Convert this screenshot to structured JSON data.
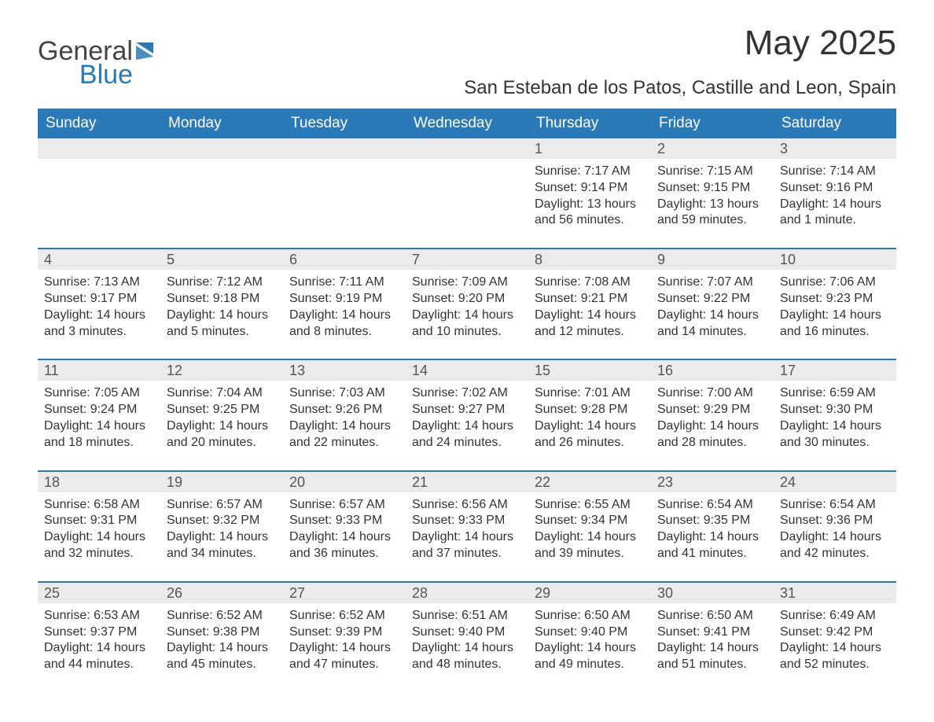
{
  "brand": {
    "word1": "General",
    "word2": "Blue"
  },
  "title": "May 2025",
  "location": "San Esteban de los Patos, Castille and Leon, Spain",
  "colors": {
    "header_bg": "#2a7ab9",
    "row_separator": "#2a7ab9",
    "daynum_bg": "#ebebeb",
    "text": "#333333",
    "logo_gray": "#444444",
    "logo_blue": "#2a7ab9",
    "background": "#ffffff"
  },
  "dow": [
    "Sunday",
    "Monday",
    "Tuesday",
    "Wednesday",
    "Thursday",
    "Friday",
    "Saturday"
  ],
  "weeks": [
    [
      {
        "day": "",
        "sunrise": "",
        "sunset": "",
        "daylight": ""
      },
      {
        "day": "",
        "sunrise": "",
        "sunset": "",
        "daylight": ""
      },
      {
        "day": "",
        "sunrise": "",
        "sunset": "",
        "daylight": ""
      },
      {
        "day": "",
        "sunrise": "",
        "sunset": "",
        "daylight": ""
      },
      {
        "day": "1",
        "sunrise": "Sunrise: 7:17 AM",
        "sunset": "Sunset: 9:14 PM",
        "daylight": "Daylight: 13 hours and 56 minutes."
      },
      {
        "day": "2",
        "sunrise": "Sunrise: 7:15 AM",
        "sunset": "Sunset: 9:15 PM",
        "daylight": "Daylight: 13 hours and 59 minutes."
      },
      {
        "day": "3",
        "sunrise": "Sunrise: 7:14 AM",
        "sunset": "Sunset: 9:16 PM",
        "daylight": "Daylight: 14 hours and 1 minute."
      }
    ],
    [
      {
        "day": "4",
        "sunrise": "Sunrise: 7:13 AM",
        "sunset": "Sunset: 9:17 PM",
        "daylight": "Daylight: 14 hours and 3 minutes."
      },
      {
        "day": "5",
        "sunrise": "Sunrise: 7:12 AM",
        "sunset": "Sunset: 9:18 PM",
        "daylight": "Daylight: 14 hours and 5 minutes."
      },
      {
        "day": "6",
        "sunrise": "Sunrise: 7:11 AM",
        "sunset": "Sunset: 9:19 PM",
        "daylight": "Daylight: 14 hours and 8 minutes."
      },
      {
        "day": "7",
        "sunrise": "Sunrise: 7:09 AM",
        "sunset": "Sunset: 9:20 PM",
        "daylight": "Daylight: 14 hours and 10 minutes."
      },
      {
        "day": "8",
        "sunrise": "Sunrise: 7:08 AM",
        "sunset": "Sunset: 9:21 PM",
        "daylight": "Daylight: 14 hours and 12 minutes."
      },
      {
        "day": "9",
        "sunrise": "Sunrise: 7:07 AM",
        "sunset": "Sunset: 9:22 PM",
        "daylight": "Daylight: 14 hours and 14 minutes."
      },
      {
        "day": "10",
        "sunrise": "Sunrise: 7:06 AM",
        "sunset": "Sunset: 9:23 PM",
        "daylight": "Daylight: 14 hours and 16 minutes."
      }
    ],
    [
      {
        "day": "11",
        "sunrise": "Sunrise: 7:05 AM",
        "sunset": "Sunset: 9:24 PM",
        "daylight": "Daylight: 14 hours and 18 minutes."
      },
      {
        "day": "12",
        "sunrise": "Sunrise: 7:04 AM",
        "sunset": "Sunset: 9:25 PM",
        "daylight": "Daylight: 14 hours and 20 minutes."
      },
      {
        "day": "13",
        "sunrise": "Sunrise: 7:03 AM",
        "sunset": "Sunset: 9:26 PM",
        "daylight": "Daylight: 14 hours and 22 minutes."
      },
      {
        "day": "14",
        "sunrise": "Sunrise: 7:02 AM",
        "sunset": "Sunset: 9:27 PM",
        "daylight": "Daylight: 14 hours and 24 minutes."
      },
      {
        "day": "15",
        "sunrise": "Sunrise: 7:01 AM",
        "sunset": "Sunset: 9:28 PM",
        "daylight": "Daylight: 14 hours and 26 minutes."
      },
      {
        "day": "16",
        "sunrise": "Sunrise: 7:00 AM",
        "sunset": "Sunset: 9:29 PM",
        "daylight": "Daylight: 14 hours and 28 minutes."
      },
      {
        "day": "17",
        "sunrise": "Sunrise: 6:59 AM",
        "sunset": "Sunset: 9:30 PM",
        "daylight": "Daylight: 14 hours and 30 minutes."
      }
    ],
    [
      {
        "day": "18",
        "sunrise": "Sunrise: 6:58 AM",
        "sunset": "Sunset: 9:31 PM",
        "daylight": "Daylight: 14 hours and 32 minutes."
      },
      {
        "day": "19",
        "sunrise": "Sunrise: 6:57 AM",
        "sunset": "Sunset: 9:32 PM",
        "daylight": "Daylight: 14 hours and 34 minutes."
      },
      {
        "day": "20",
        "sunrise": "Sunrise: 6:57 AM",
        "sunset": "Sunset: 9:33 PM",
        "daylight": "Daylight: 14 hours and 36 minutes."
      },
      {
        "day": "21",
        "sunrise": "Sunrise: 6:56 AM",
        "sunset": "Sunset: 9:33 PM",
        "daylight": "Daylight: 14 hours and 37 minutes."
      },
      {
        "day": "22",
        "sunrise": "Sunrise: 6:55 AM",
        "sunset": "Sunset: 9:34 PM",
        "daylight": "Daylight: 14 hours and 39 minutes."
      },
      {
        "day": "23",
        "sunrise": "Sunrise: 6:54 AM",
        "sunset": "Sunset: 9:35 PM",
        "daylight": "Daylight: 14 hours and 41 minutes."
      },
      {
        "day": "24",
        "sunrise": "Sunrise: 6:54 AM",
        "sunset": "Sunset: 9:36 PM",
        "daylight": "Daylight: 14 hours and 42 minutes."
      }
    ],
    [
      {
        "day": "25",
        "sunrise": "Sunrise: 6:53 AM",
        "sunset": "Sunset: 9:37 PM",
        "daylight": "Daylight: 14 hours and 44 minutes."
      },
      {
        "day": "26",
        "sunrise": "Sunrise: 6:52 AM",
        "sunset": "Sunset: 9:38 PM",
        "daylight": "Daylight: 14 hours and 45 minutes."
      },
      {
        "day": "27",
        "sunrise": "Sunrise: 6:52 AM",
        "sunset": "Sunset: 9:39 PM",
        "daylight": "Daylight: 14 hours and 47 minutes."
      },
      {
        "day": "28",
        "sunrise": "Sunrise: 6:51 AM",
        "sunset": "Sunset: 9:40 PM",
        "daylight": "Daylight: 14 hours and 48 minutes."
      },
      {
        "day": "29",
        "sunrise": "Sunrise: 6:50 AM",
        "sunset": "Sunset: 9:40 PM",
        "daylight": "Daylight: 14 hours and 49 minutes."
      },
      {
        "day": "30",
        "sunrise": "Sunrise: 6:50 AM",
        "sunset": "Sunset: 9:41 PM",
        "daylight": "Daylight: 14 hours and 51 minutes."
      },
      {
        "day": "31",
        "sunrise": "Sunrise: 6:49 AM",
        "sunset": "Sunset: 9:42 PM",
        "daylight": "Daylight: 14 hours and 52 minutes."
      }
    ]
  ]
}
